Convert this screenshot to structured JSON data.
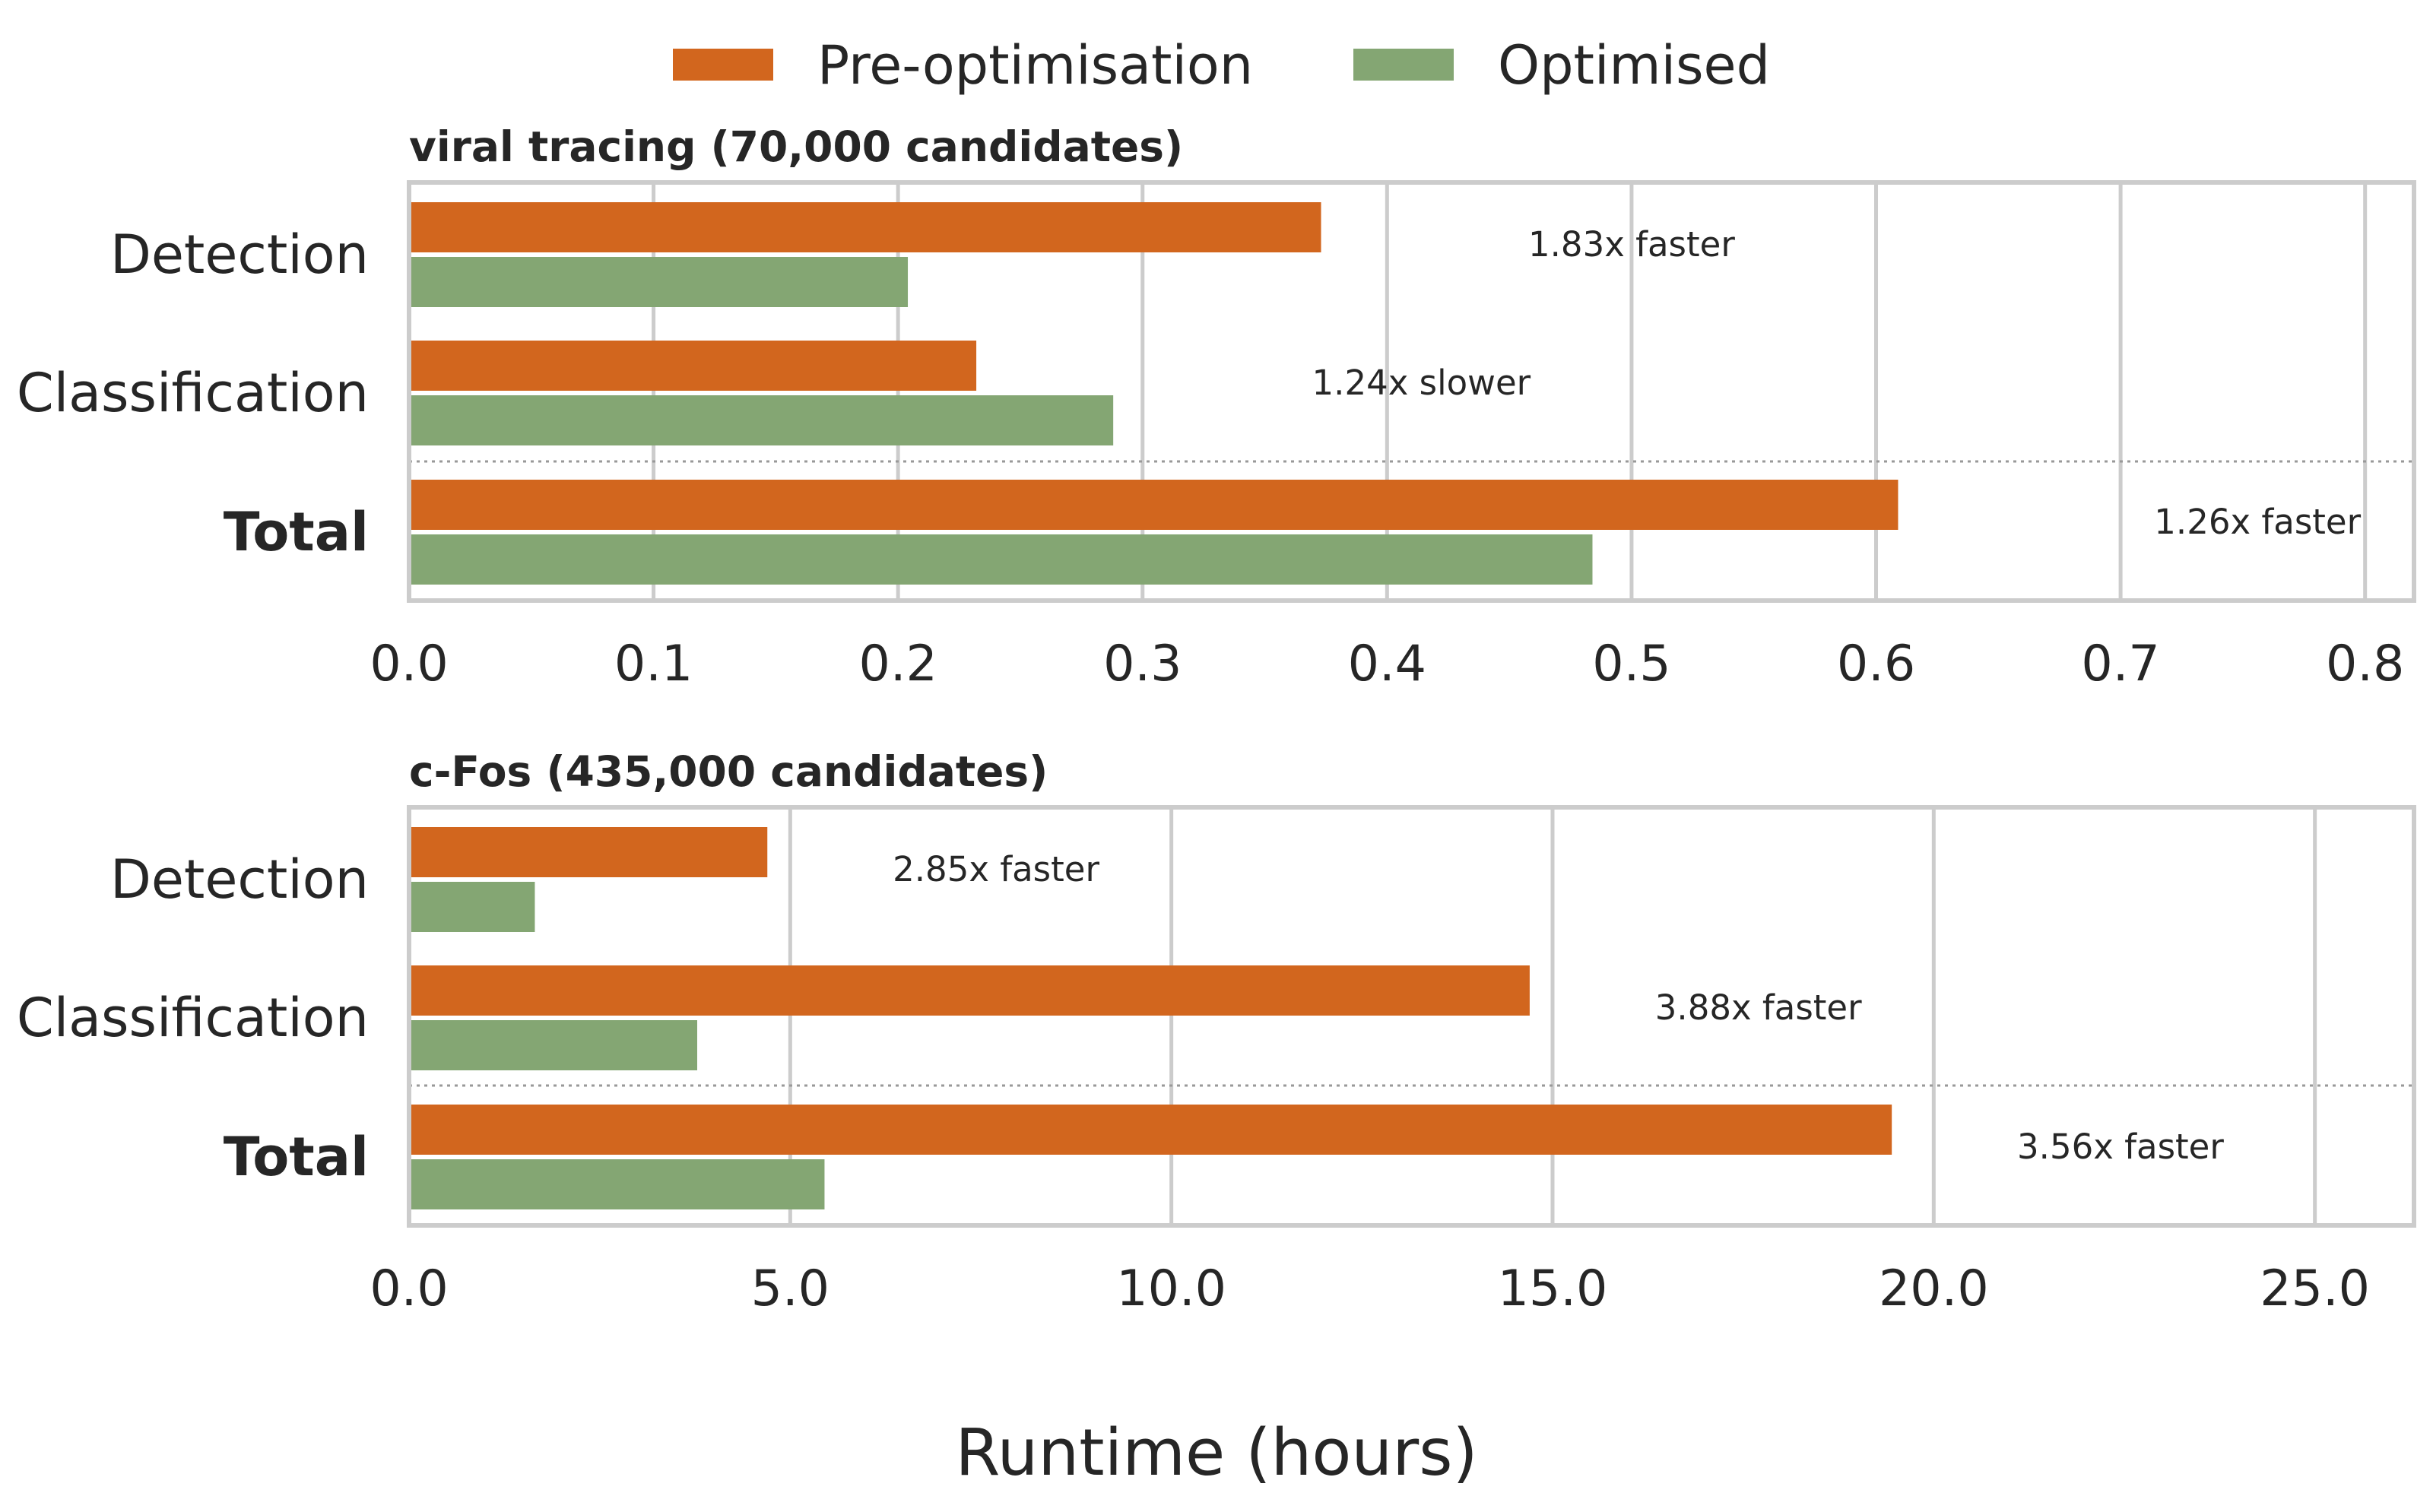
{
  "colors": {
    "pre": "#D2661E",
    "opt": "#84A673",
    "grid": "#CCCCCC",
    "text": "#262626",
    "separator": "#999999"
  },
  "legend": {
    "pre_label": "Pre-optimisation",
    "opt_label": "Optimised"
  },
  "chart_data": {
    "type": "bar",
    "orientation": "horizontal",
    "xlabel": "Runtime (hours)",
    "legend_position": "top-center",
    "grid": "vertical",
    "panels": [
      {
        "title": "viral tracing (70,000 candidates)",
        "categories": [
          "Detection",
          "Classification",
          "Total"
        ],
        "xlim": [
          0,
          0.82
        ],
        "xticks": [
          0.0,
          0.1,
          0.2,
          0.3,
          0.4,
          0.5,
          0.6,
          0.7,
          0.8
        ],
        "xtick_labels": [
          "0.0",
          "0.1",
          "0.2",
          "0.3",
          "0.4",
          "0.5",
          "0.6",
          "0.7",
          "0.8"
        ],
        "series": [
          {
            "name": "Pre-optimisation",
            "values": [
              0.373,
              0.232,
              0.609
            ]
          },
          {
            "name": "Optimised",
            "values": [
              0.204,
              0.288,
              0.484
            ]
          }
        ],
        "annotations": [
          "1.83x faster",
          "1.24x slower",
          "1.26x faster"
        ],
        "annotation_x": [
          0.5,
          0.414,
          0.756
        ]
      },
      {
        "title": "c-Fos (435,000 candidates)",
        "categories": [
          "Detection",
          "Classification",
          "Total"
        ],
        "xlim": [
          0,
          26.3
        ],
        "xticks": [
          0,
          5,
          10,
          15,
          20,
          25
        ],
        "xtick_labels": [
          "0.0",
          "5.0",
          "10.0",
          "15.0",
          "20.0",
          "25.0"
        ],
        "series": [
          {
            "name": "Pre-optimisation",
            "values": [
              4.7,
              14.7,
              19.45
            ]
          },
          {
            "name": "Optimised",
            "values": [
              1.65,
              3.78,
              5.45
            ]
          }
        ],
        "annotations": [
          "2.85x faster",
          "3.88x faster",
          "3.56x faster"
        ],
        "annotation_x": [
          7.7,
          17.7,
          22.45
        ]
      }
    ]
  }
}
